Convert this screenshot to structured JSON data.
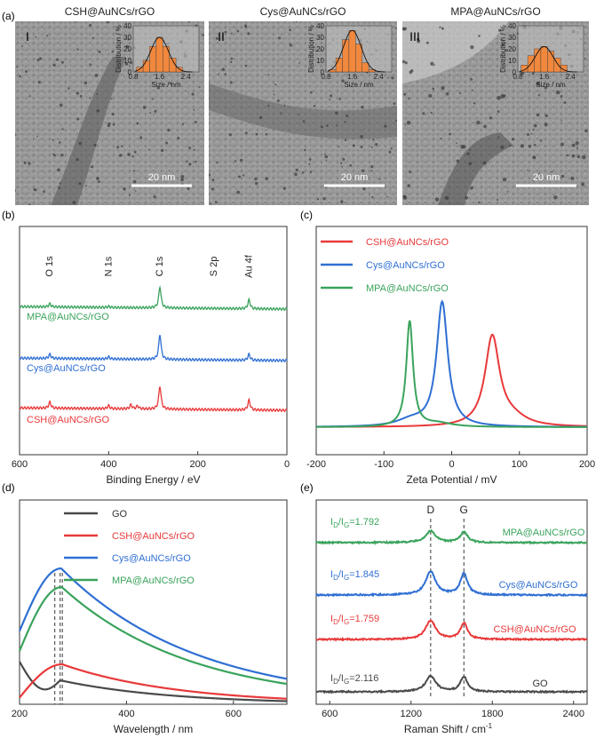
{
  "figure": {
    "label_a": "(a)",
    "label_b": "(b)",
    "label_c": "(c)",
    "label_d": "(d)",
    "label_e": "(e)"
  },
  "tem_panels": [
    {
      "title": "CSH@AuNCs/rGO",
      "roman": "I",
      "scale_bar": "20 nm"
    },
    {
      "title": "Cys@AuNCs/rGO",
      "roman": "II",
      "scale_bar": "20 nm"
    },
    {
      "title": "MPA@AuNCs/rGO",
      "roman": "III",
      "scale_bar": "20 nm"
    }
  ],
  "colors": {
    "gray": "#4a4a4a",
    "red": "#e8393a",
    "blue": "#2f6fd3",
    "green": "#3aa35c",
    "bar": "#f0883e"
  },
  "chart_data": [
    {
      "id": "inset-hist",
      "type": "bar",
      "xlabel": "Size / nm",
      "ylabel": "Distribution / %",
      "xticks": [
        "0.8",
        "1.6",
        "2.4"
      ],
      "yticks": [
        "0",
        "10",
        "20",
        "30",
        "40"
      ],
      "xlim": [
        0.8,
        2.8
      ],
      "ylim": [
        0,
        40
      ],
      "bin_centers": [
        1.0,
        1.2,
        1.4,
        1.6,
        1.8,
        2.0,
        2.2
      ],
      "series": [
        {
          "values": [
            4,
            10,
            22,
            30,
            22,
            12,
            4
          ]
        },
        {
          "values": [
            2,
            12,
            28,
            36,
            24,
            8,
            2
          ]
        },
        {
          "values": [
            6,
            14,
            20,
            22,
            18,
            12,
            6
          ]
        }
      ]
    },
    {
      "id": "b",
      "type": "line",
      "xlabel": "Binding Energy / eV",
      "xlim": [
        600,
        0
      ],
      "xticks": [
        "600",
        "400",
        "200",
        "0"
      ],
      "peak_labels": [
        {
          "text": "O 1s",
          "x": 532
        },
        {
          "text": "N 1s",
          "x": 400
        },
        {
          "text": "C 1s",
          "x": 285
        },
        {
          "text": "S 2p",
          "x": 163
        },
        {
          "text": "Au 4f",
          "x": 85
        }
      ],
      "series": [
        {
          "name": "MPA@AuNCs/rGO",
          "color": "green",
          "peaks": [
            [
              532,
              0.3
            ],
            [
              400,
              0.1
            ],
            [
              285,
              2.2
            ],
            [
              85,
              0.9
            ]
          ]
        },
        {
          "name": "Cys@AuNCs/rGO",
          "color": "blue",
          "peaks": [
            [
              532,
              0.4
            ],
            [
              400,
              0.2
            ],
            [
              285,
              2.6
            ],
            [
              85,
              0.6
            ]
          ]
        },
        {
          "name": "CSH@AuNCs/rGO",
          "color": "red",
          "peaks": [
            [
              532,
              0.6
            ],
            [
              400,
              0.3
            ],
            [
              350,
              0.4
            ],
            [
              335,
              0.3
            ],
            [
              285,
              2.4
            ],
            [
              85,
              1.0
            ]
          ]
        }
      ]
    },
    {
      "id": "c",
      "type": "line",
      "xlabel": "Zeta Potential / mV",
      "xlim": [
        -200,
        200
      ],
      "xticks": [
        "-200",
        "-100",
        "0",
        "100",
        "200"
      ],
      "legend": "top-left",
      "series": [
        {
          "name": "CSH@AuNCs/rGO",
          "color": "red",
          "peak_x": 60,
          "height": 0.72
        },
        {
          "name": "Cys@AuNCs/rGO",
          "color": "blue",
          "peak_x": -14,
          "height": 1.0
        },
        {
          "name": "MPA@AuNCs/rGO",
          "color": "green",
          "peak_x": -62,
          "height": 0.85
        }
      ]
    },
    {
      "id": "d",
      "type": "line",
      "xlabel": "Wavelength / nm",
      "xlim": [
        200,
        700
      ],
      "xticks": [
        "200",
        "400",
        "600"
      ],
      "legend": "top-right",
      "dashed_lines_x": [
        266,
        276,
        280
      ],
      "series": [
        {
          "name": "GO",
          "color": "gray"
        },
        {
          "name": "CSH@AuNCs/rGO",
          "color": "red"
        },
        {
          "name": "Cys@AuNCs/rGO",
          "color": "blue"
        },
        {
          "name": "MPA@AuNCs/rGO",
          "color": "green"
        }
      ]
    },
    {
      "id": "e",
      "type": "line",
      "xlabel": "Raman Shift / cm",
      "xlabel_sup": "-1",
      "xlim": [
        500,
        2500
      ],
      "xticks": [
        "600",
        "1200",
        "1800",
        "2400"
      ],
      "band_labels": [
        {
          "text": "D",
          "x": 1345
        },
        {
          "text": "G",
          "x": 1590
        }
      ],
      "series": [
        {
          "name": "MPA@AuNCs/rGO",
          "color": "green",
          "ratio": "1.792"
        },
        {
          "name": "Cys@AuNCs/rGO",
          "color": "blue",
          "ratio": "1.845"
        },
        {
          "name": "CSH@AuNCs/rGO",
          "color": "red",
          "ratio": "1.759"
        },
        {
          "name": "GO",
          "color": "gray",
          "ratio": "2.116"
        }
      ]
    }
  ]
}
